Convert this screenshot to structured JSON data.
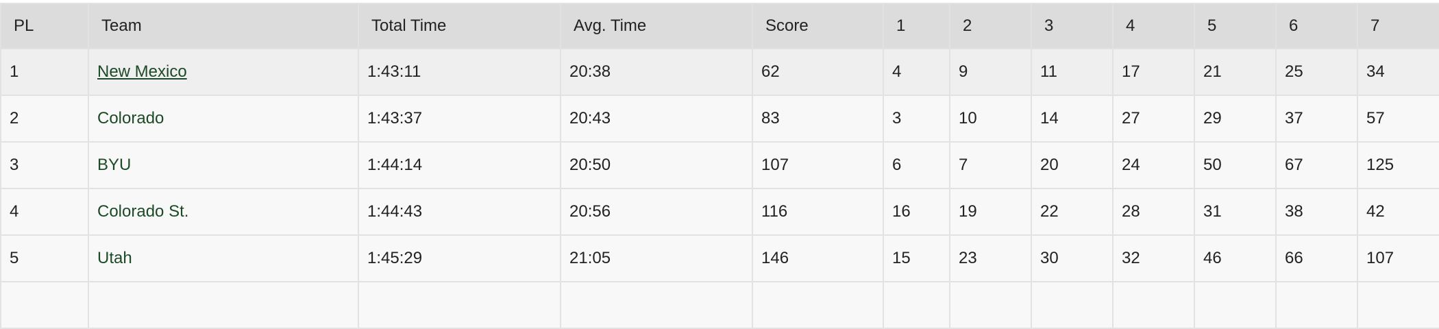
{
  "table": {
    "headers": [
      "PL",
      "Team",
      "Total Time",
      "Avg. Time",
      "Score",
      "1",
      "2",
      "3",
      "4",
      "5",
      "6",
      "7"
    ],
    "rows": [
      [
        "1",
        "New Mexico",
        "1:43:11",
        "20:38",
        "62",
        "4",
        "9",
        "11",
        "17",
        "21",
        "25",
        "34"
      ],
      [
        "2",
        "Colorado",
        "1:43:37",
        "20:43",
        "83",
        "3",
        "10",
        "14",
        "27",
        "29",
        "37",
        "57"
      ],
      [
        "3",
        "BYU",
        "1:44:14",
        "20:50",
        "107",
        "6",
        "7",
        "20",
        "24",
        "50",
        "67",
        "125"
      ],
      [
        "4",
        "Colorado St.",
        "1:44:43",
        "20:56",
        "116",
        "16",
        "19",
        "22",
        "28",
        "31",
        "38",
        "42"
      ],
      [
        "5",
        "Utah",
        "1:45:29",
        "21:05",
        "146",
        "15",
        "23",
        "30",
        "32",
        "46",
        "66",
        "107"
      ],
      [
        "",
        "",
        "",
        "",
        "",
        "",
        "",
        "",
        "",
        "",
        "",
        ""
      ]
    ],
    "hovered_row": 0,
    "colors": {
      "header_bg": "#dcdcdc",
      "row_bg": "#f8f8f8",
      "hover_bg": "#efefef",
      "link": "#1d4a26",
      "border": "#e2e2e2"
    }
  }
}
